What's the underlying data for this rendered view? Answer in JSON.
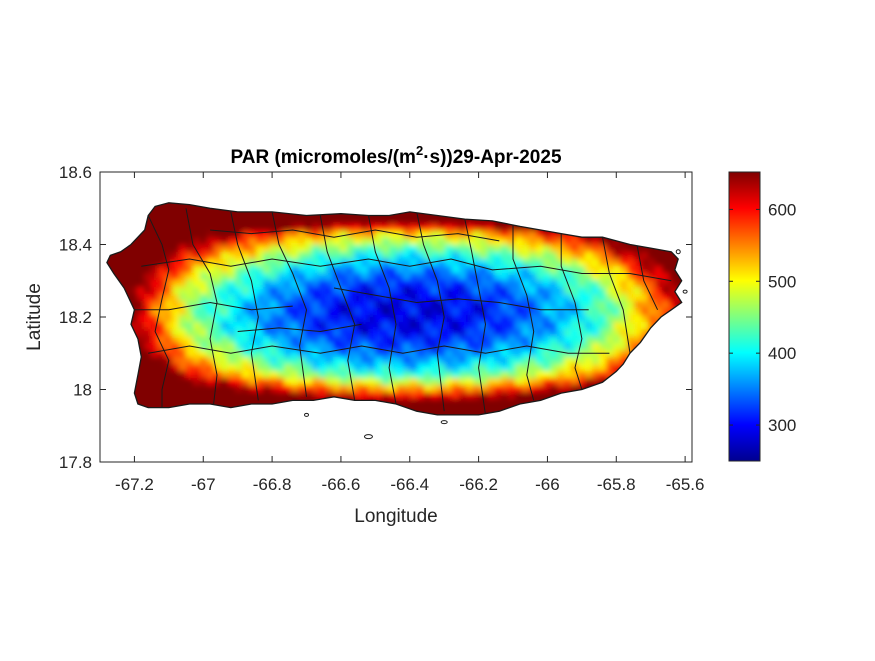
{
  "chart_data": {
    "type": "heatmap",
    "title": {
      "prefix": "PAR (micromoles/(m",
      "superscript": "2",
      "suffix": "·s))29-Apr-2025"
    },
    "xlabel": "Longitude",
    "ylabel": "Latitude",
    "xlim": [
      -67.3,
      -65.58
    ],
    "ylim": [
      17.8,
      18.6
    ],
    "xticks": [
      -67.2,
      -67,
      -66.8,
      -66.6,
      -66.4,
      -66.2,
      -66,
      -65.8,
      -65.6
    ],
    "xtick_labels": [
      "-67.2",
      "-67",
      "-66.8",
      "-66.6",
      "-66.4",
      "-66.2",
      "-66",
      "-65.8",
      "-65.6"
    ],
    "yticks": [
      17.8,
      18,
      18.2,
      18.4,
      18.6
    ],
    "ytick_labels": [
      "17.8",
      "18",
      "18.2",
      "18.4",
      "18.6"
    ],
    "grid": false,
    "colorbar": {
      "colormap": "jet",
      "clim": [
        250,
        652
      ],
      "ticks": [
        300,
        400,
        500,
        600
      ],
      "tick_labels": [
        "300",
        "400",
        "500",
        "600"
      ]
    },
    "description_of_field": {
      "high_regions": [
        "west coast",
        "north coast strip",
        "south coast",
        "east coast"
      ],
      "low_regions": [
        "central interior",
        "north-central"
      ],
      "approx_values": {
        "west_coast": 620,
        "north_coast": 560,
        "central_interior": 300,
        "south_coast": 560,
        "east_coast": 600
      }
    }
  }
}
